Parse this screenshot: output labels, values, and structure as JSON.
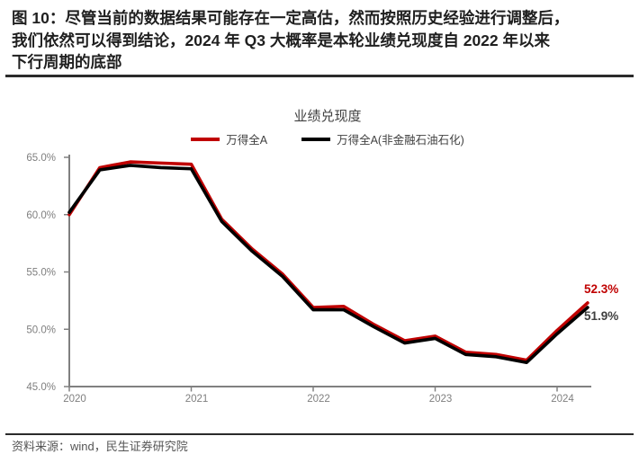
{
  "header": {
    "figure_title_lines": [
      "图 10：尽管当前的数据结果可能存在一定高估，然而按照历史经验进行调整后，",
      "我们依然可以得到结论，2024 年 Q3 大概率是本轮业绩兑现度自 2022 年以来",
      "下行周期的底部"
    ]
  },
  "chart_data": {
    "type": "line",
    "title": "业绩兑现度",
    "categories": [
      "2020Q1",
      "2020Q2",
      "2020Q3",
      "2020Q4",
      "2021Q1",
      "2021Q2",
      "2021Q3",
      "2021Q4",
      "2022Q1",
      "2022Q2",
      "2022Q3",
      "2022Q4",
      "2023Q1",
      "2023Q2",
      "2023Q3",
      "2023Q4",
      "2024Q1",
      "2024Q2"
    ],
    "series": [
      {
        "name": "万得全A",
        "color": "#C00000",
        "end_label": "52.3%",
        "end_label_color": "#C00000",
        "values": [
          60.0,
          64.1,
          64.6,
          64.5,
          64.4,
          59.6,
          57.0,
          54.8,
          51.9,
          52.0,
          50.4,
          49.0,
          49.4,
          48.0,
          47.8,
          47.3,
          49.9,
          52.3
        ]
      },
      {
        "name": "万得全A(非金融石油石化)",
        "color": "#000000",
        "end_label": "51.9%",
        "end_label_color": "#3f3f3f",
        "values": [
          60.2,
          63.9,
          64.3,
          64.1,
          64.0,
          59.4,
          56.8,
          54.6,
          51.7,
          51.7,
          50.2,
          48.8,
          49.2,
          47.8,
          47.6,
          47.1,
          49.6,
          51.9
        ]
      }
    ],
    "ylim": [
      45,
      65
    ],
    "y_ticks": [
      {
        "value": 65,
        "label": "65.0%"
      },
      {
        "value": 60,
        "label": "60.0%"
      },
      {
        "value": 55,
        "label": "55.0%"
      },
      {
        "value": 50,
        "label": "50.0%"
      },
      {
        "value": 45,
        "label": "45.0%"
      }
    ],
    "x_ticks": [
      {
        "index": 0,
        "label": "2020"
      },
      {
        "index": 4,
        "label": "2021"
      },
      {
        "index": 8,
        "label": "2022"
      },
      {
        "index": 12,
        "label": "2023"
      },
      {
        "index": 16,
        "label": "2024"
      }
    ],
    "grid": false,
    "legend_position": "top",
    "axis_color": "#808080"
  },
  "footer": {
    "source": "资料来源：wind，民生证券研究院"
  }
}
